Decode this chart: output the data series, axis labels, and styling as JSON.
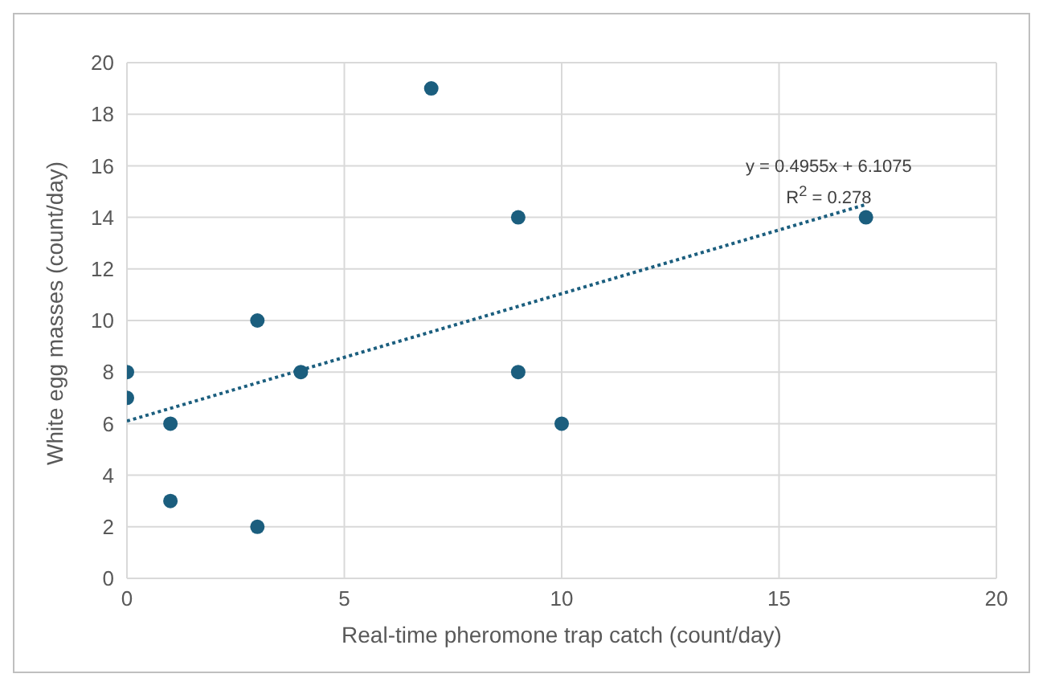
{
  "chart_data": {
    "type": "scatter",
    "xlabel": "Real-time pheromone trap catch (count/day)",
    "ylabel": "White egg masses (count/day)",
    "series": [
      {
        "color": "#1b5e7e",
        "x": [
          0,
          0,
          1,
          1,
          3,
          3,
          4,
          7,
          9,
          9,
          10,
          17
        ],
        "values": [
          8,
          7,
          6,
          3,
          10,
          2,
          8,
          19,
          14,
          8,
          6,
          14
        ],
        "marker": "circle"
      },
      {
        "type": "line",
        "color": "#1b5e7e",
        "x": [
          0,
          17
        ],
        "values": [
          6.1,
          14.5
        ],
        "line_style": "dotted",
        "marker": "none"
      }
    ],
    "annotations": [
      "y = 0.4955x + 6.1075",
      "R$^{2}$ = 0.278"
    ],
    "xlim": [
      0,
      20
    ],
    "xticks": [
      0,
      5,
      10,
      15,
      20
    ],
    "ylim": [
      0,
      20
    ],
    "yticks": [
      0,
      2,
      4,
      6,
      8,
      10,
      12,
      14,
      16,
      18,
      20
    ],
    "grid": true
  }
}
